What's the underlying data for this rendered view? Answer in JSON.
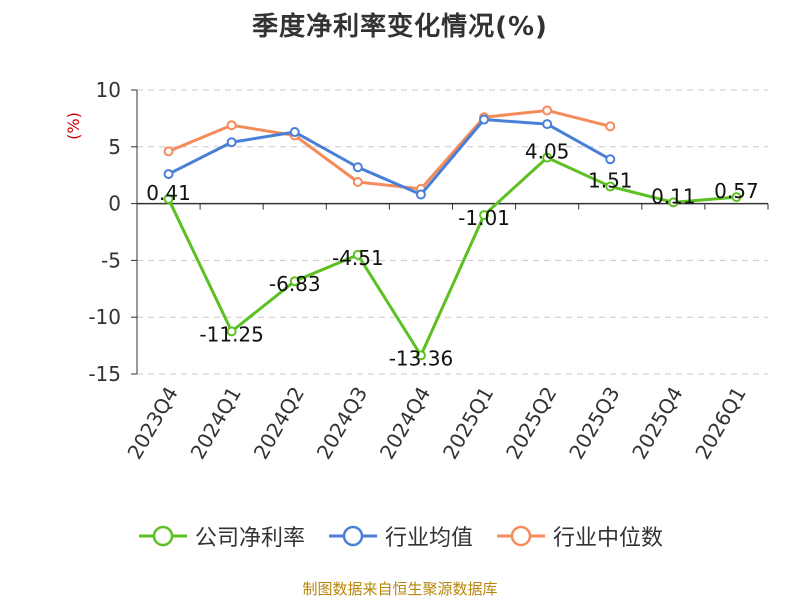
{
  "chart_data": {
    "type": "line",
    "title": "季度净利率变化情况(%)",
    "ylabel": "(%)",
    "xlabel": "",
    "categories": [
      "2023Q4",
      "2024Q1",
      "2024Q2",
      "2024Q3",
      "2024Q4",
      "2025Q1",
      "2025Q2",
      "2025Q3",
      "2025Q4",
      "2026Q1"
    ],
    "ylim": [
      -15,
      10
    ],
    "yticks": [
      10,
      5,
      0,
      -5,
      -10,
      -15
    ],
    "grid": true,
    "legend_position": "bottom",
    "series": [
      {
        "name": "公司净利率",
        "color": "#5cc022",
        "values": [
          0.41,
          -11.25,
          -6.83,
          -4.51,
          -13.36,
          -1.01,
          4.05,
          1.51,
          0.11,
          0.57
        ],
        "labels": [
          "0.41",
          "-11.25",
          "-6.83",
          "-4.51",
          "-13.36",
          "-1.01",
          "4.05",
          "1.51",
          "0.11",
          "0.57"
        ]
      },
      {
        "name": "行业均值",
        "color": "#4a7fd8",
        "values": [
          2.6,
          5.4,
          6.3,
          3.2,
          0.8,
          7.4,
          7.0,
          3.9,
          null,
          null
        ]
      },
      {
        "name": "行业中位数",
        "color": "#f58b5a",
        "values": [
          4.6,
          6.9,
          6.0,
          1.9,
          1.3,
          7.6,
          8.2,
          6.8,
          null,
          null
        ]
      }
    ]
  },
  "source_note": "制图数据来自恒生聚源数据库",
  "axis_label_color": "#cc0000"
}
